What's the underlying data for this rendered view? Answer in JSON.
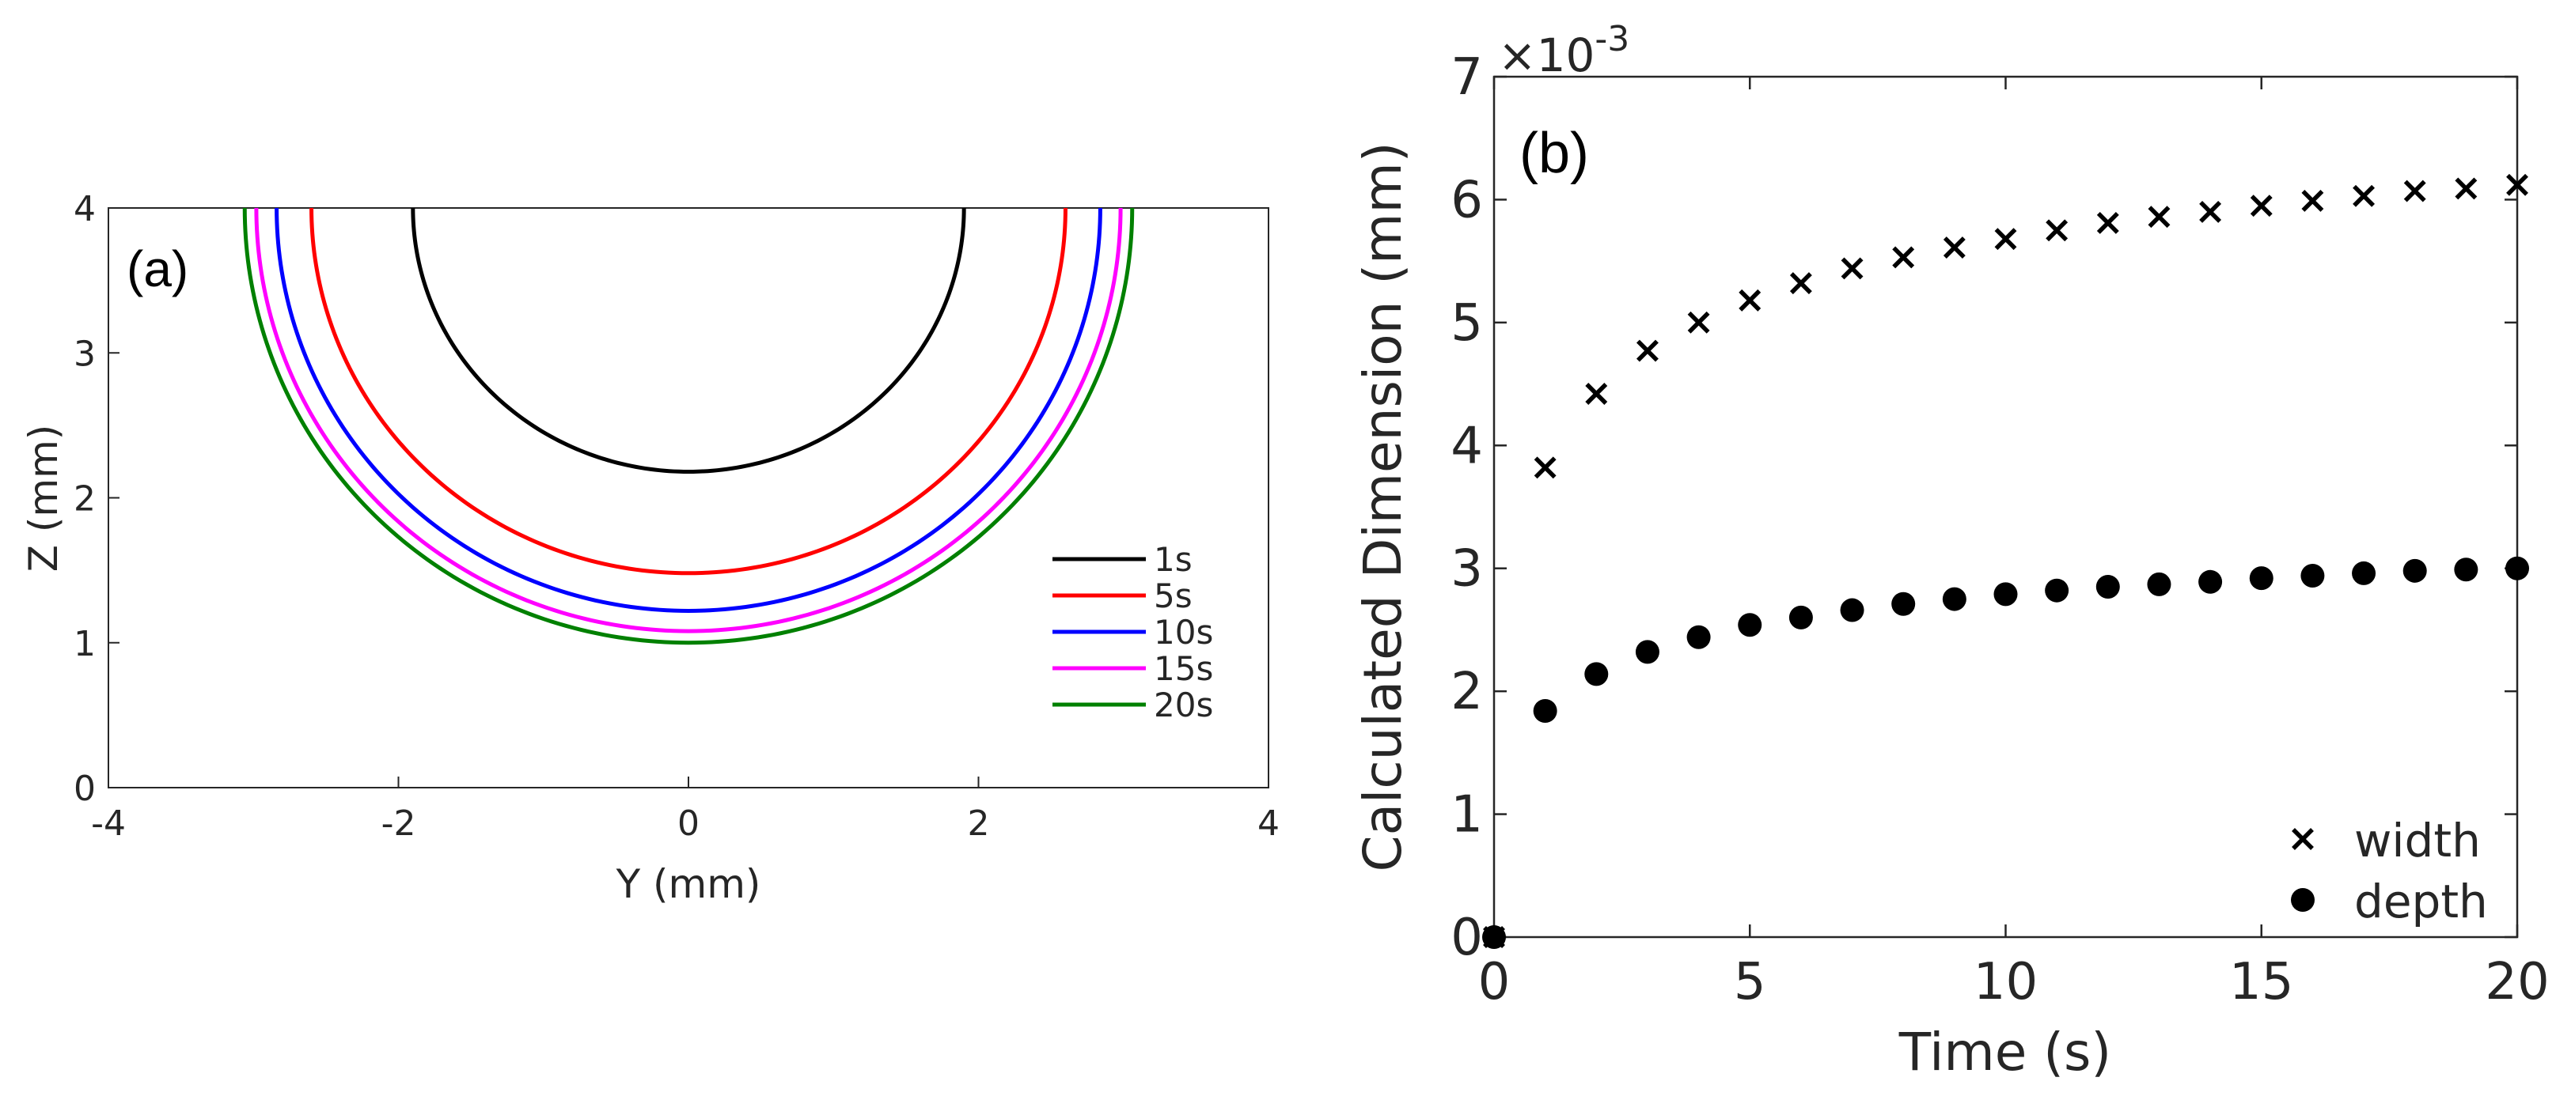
{
  "chart_data": [
    {
      "type": "line",
      "panel_label": "(a)",
      "xlabel": "Y (mm)",
      "ylabel": "Z (mm)",
      "xlim": [
        -4,
        4
      ],
      "ylim": [
        0,
        4
      ],
      "xticks": [
        "-4",
        "-2",
        "0",
        "2",
        "4"
      ],
      "yticks": [
        "0",
        "1",
        "2",
        "3",
        "4"
      ],
      "legend_position": "lower-right",
      "series": [
        {
          "name": "1s",
          "color": "#000000",
          "half_width": 1.9,
          "bottom_z": 2.18,
          "top_z": 4
        },
        {
          "name": "5s",
          "color": "#ff0000",
          "half_width": 2.6,
          "bottom_z": 1.48,
          "top_z": 4
        },
        {
          "name": "10s",
          "color": "#0000ff",
          "half_width": 2.84,
          "bottom_z": 1.22,
          "top_z": 4
        },
        {
          "name": "15s",
          "color": "#ff00ff",
          "half_width": 2.98,
          "bottom_z": 1.08,
          "top_z": 4
        },
        {
          "name": "20s",
          "color": "#008000",
          "half_width": 3.06,
          "bottom_z": 1.0,
          "top_z": 4
        }
      ]
    },
    {
      "type": "scatter",
      "panel_label": "(b)",
      "xlabel": "Time (s)",
      "ylabel": "Calculated Dimension (mm)",
      "exponent_label": "×10",
      "exponent_power": "-3",
      "xlim": [
        0,
        20
      ],
      "ylim": [
        0,
        7
      ],
      "xticks": [
        "0",
        "5",
        "10",
        "15",
        "20"
      ],
      "yticks": [
        "0",
        "1",
        "2",
        "3",
        "4",
        "5",
        "6",
        "7"
      ],
      "legend_position": "lower-right",
      "x": [
        0,
        1,
        2,
        3,
        4,
        5,
        6,
        7,
        8,
        9,
        10,
        11,
        12,
        13,
        14,
        15,
        16,
        17,
        18,
        19,
        20
      ],
      "series": [
        {
          "name": "width",
          "marker": "x",
          "values": [
            0,
            3.82,
            4.42,
            4.77,
            5.0,
            5.18,
            5.32,
            5.44,
            5.53,
            5.61,
            5.68,
            5.75,
            5.81,
            5.86,
            5.9,
            5.95,
            5.99,
            6.03,
            6.07,
            6.09,
            6.12
          ]
        },
        {
          "name": "depth",
          "marker": "circle",
          "values": [
            0,
            1.84,
            2.14,
            2.32,
            2.44,
            2.54,
            2.6,
            2.66,
            2.71,
            2.75,
            2.79,
            2.82,
            2.85,
            2.87,
            2.89,
            2.92,
            2.94,
            2.96,
            2.98,
            2.99,
            3.0
          ]
        }
      ]
    }
  ]
}
